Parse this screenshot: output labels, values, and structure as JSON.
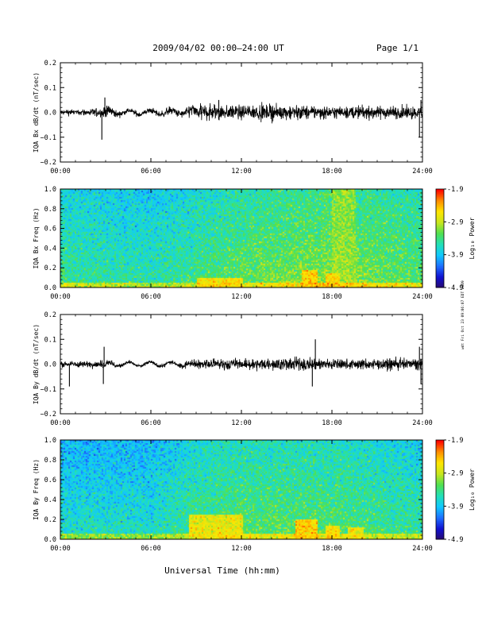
{
  "header": {
    "title": "2009/04/02  00:00–24:00 UT",
    "page": "Page 1/1"
  },
  "footer": {
    "xlabel": "Universal Time (hh:mm)"
  },
  "side_stamp": "wdt Fri Oct 23 09:06:07 EDT 2009",
  "colors": {
    "line": "#000000",
    "colormap": [
      "#2a0a6a",
      "#1010d0",
      "#1e6eff",
      "#10c8ff",
      "#22e0b8",
      "#50e050",
      "#c8e61e",
      "#ffe600",
      "#ff8c00",
      "#ff0000"
    ]
  },
  "chart_data": [
    {
      "type": "line",
      "ylabel": "IQA Bx dB/dt (nT/sec)",
      "xticks": [
        "00:00",
        "06:00",
        "12:00",
        "18:00",
        "24:00"
      ],
      "yticks": [
        "0.2",
        "0.1",
        "0.0",
        "−0.1",
        "−0.2"
      ],
      "x_range_hours": [
        0,
        24
      ],
      "ylim": [
        -0.2,
        0.2
      ],
      "series": [
        {
          "x": [
            0,
            2,
            3,
            4,
            6,
            8,
            9,
            10,
            12,
            14,
            16,
            18,
            20,
            22,
            24
          ],
          "y_amplitude": [
            0.012,
            0.015,
            0.03,
            0.012,
            0.012,
            0.02,
            0.035,
            0.04,
            0.035,
            0.035,
            0.03,
            0.03,
            0.03,
            0.03,
            0.03
          ]
        }
      ],
      "spikes": [
        {
          "x": 2.75,
          "y": -0.11
        },
        {
          "x": 2.95,
          "y": 0.06
        },
        {
          "x": 10.5,
          "y": 0.05
        },
        {
          "x": 23.8,
          "y": -0.1
        },
        {
          "x": 23.9,
          "y": 0.05
        }
      ]
    },
    {
      "type": "heatmap",
      "ylabel": "IQA Bx Freq (Hz)",
      "xticks": [
        "00:00",
        "06:00",
        "12:00",
        "18:00",
        "24:00"
      ],
      "yticks": [
        "1.0",
        "0.8",
        "0.6",
        "0.4",
        "0.2",
        "0.0"
      ],
      "x_range_hours": [
        0,
        24
      ],
      "ylim": [
        0.0,
        1.0
      ],
      "colorbar": {
        "label": "Log₁₀ Power",
        "range": [
          -4.9,
          -1.9
        ],
        "ticks": [
          "-1.9",
          "-2.9",
          "-3.9",
          "-4.9"
        ]
      },
      "log_power_background": [
        {
          "x": 0,
          "value": -3.65
        },
        {
          "x": 6,
          "value": -3.75
        },
        {
          "x": 12,
          "value": -3.45
        },
        {
          "x": 18,
          "value": -3.3
        },
        {
          "x": 24,
          "value": -3.5
        }
      ],
      "enhancements": [
        {
          "x": [
            9,
            12
          ],
          "freq_max": 0.1,
          "value": -2.6
        },
        {
          "x": [
            16,
            17
          ],
          "freq_max": 0.18,
          "value": -2.5
        },
        {
          "x": [
            17.5,
            18.5
          ],
          "freq_max": 0.15,
          "value": -2.6
        },
        {
          "x": [
            18,
            19.5
          ],
          "freq_max": 1.0,
          "value": -3.1
        }
      ]
    },
    {
      "type": "line",
      "ylabel": "IQA By dB/dt (nT/sec)",
      "xticks": [
        "00:00",
        "06:00",
        "12:00",
        "18:00",
        "24:00"
      ],
      "yticks": [
        "0.2",
        "0.1",
        "0.0",
        "−0.1",
        "−0.2"
      ],
      "x_range_hours": [
        0,
        24
      ],
      "ylim": [
        -0.2,
        0.2
      ],
      "series": [
        {
          "x": [
            0,
            2,
            3,
            4,
            6,
            8,
            9,
            10,
            12,
            14,
            16,
            18,
            20,
            22,
            24
          ],
          "y_amplitude": [
            0.012,
            0.015,
            0.02,
            0.008,
            0.008,
            0.012,
            0.02,
            0.025,
            0.025,
            0.025,
            0.03,
            0.025,
            0.025,
            0.025,
            0.03
          ]
        }
      ],
      "spikes": [
        {
          "x": 0.6,
          "y": -0.09
        },
        {
          "x": 2.9,
          "y": 0.07
        },
        {
          "x": 2.85,
          "y": -0.08
        },
        {
          "x": 16.9,
          "y": 0.1
        },
        {
          "x": 16.7,
          "y": -0.09
        },
        {
          "x": 23.8,
          "y": 0.07
        },
        {
          "x": 23.9,
          "y": -0.08
        }
      ]
    },
    {
      "type": "heatmap",
      "ylabel": "IQA By Freq (Hz)",
      "xticks": [
        "00:00",
        "06:00",
        "12:00",
        "18:00",
        "24:00"
      ],
      "yticks": [
        "1.0",
        "0.8",
        "0.6",
        "0.4",
        "0.2",
        "0.0"
      ],
      "x_range_hours": [
        0,
        24
      ],
      "ylim": [
        0.0,
        1.0
      ],
      "colorbar": {
        "label": "Log₁₀ Power",
        "range": [
          -4.9,
          -1.9
        ],
        "ticks": [
          "-1.9",
          "-2.9",
          "-3.9",
          "-4.9"
        ]
      },
      "log_power_background": [
        {
          "x": 0,
          "value": -3.85
        },
        {
          "x": 6,
          "value": -3.85
        },
        {
          "x": 9,
          "value": -3.6
        },
        {
          "x": 12,
          "value": -3.5
        },
        {
          "x": 18,
          "value": -3.5
        },
        {
          "x": 24,
          "value": -3.7
        }
      ],
      "enhancements": [
        {
          "x": [
            8.5,
            12
          ],
          "freq_max": 0.25,
          "value": -2.7
        },
        {
          "x": [
            15.5,
            17
          ],
          "freq_max": 0.2,
          "value": -2.5
        },
        {
          "x": [
            17.5,
            18.5
          ],
          "freq_max": 0.15,
          "value": -2.6
        },
        {
          "x": [
            19,
            20
          ],
          "freq_max": 0.12,
          "value": -2.7
        }
      ]
    }
  ]
}
